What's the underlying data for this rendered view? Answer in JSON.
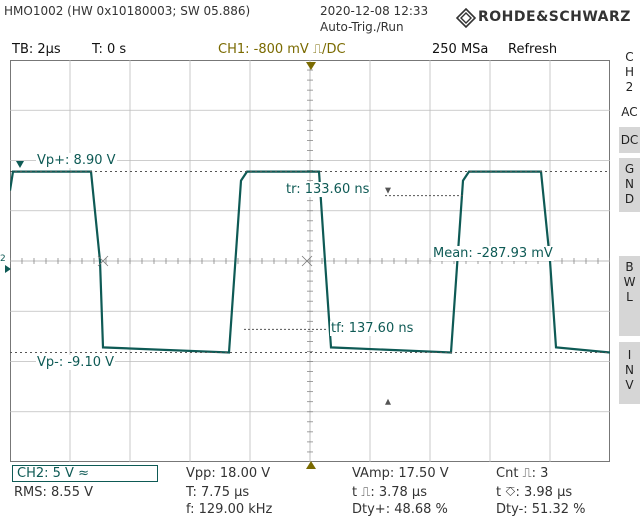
{
  "header": {
    "device": "HMO1002 (HW 0x10180003; SW 05.886)",
    "date": "2020-12-08 12:33",
    "trigger_mode": "Auto-Trig./Run",
    "brand": "ROHDE&SCHWARZ"
  },
  "status_bar": {
    "timebase": "TB: 2µs",
    "trigger_time": "T: 0 s",
    "ch1": "CH1: -800 mV ⎍/DC",
    "sample_rate": "250 MSa",
    "mode": "Refresh"
  },
  "side_panel": {
    "ch2_label": "C\nH\n2",
    "ac": "AC",
    "dc": "DC",
    "gnd": "G\nN\nD",
    "bwl": "B\nW\nL",
    "inv": "I\nN\nV"
  },
  "overlays": {
    "vp_plus": "Vp+: 8.90 V",
    "vp_minus": "Vp-: -9.10 V",
    "tr": "tr: 133.60 ns",
    "tf": "tf: 137.60 ns",
    "mean": "Mean: -287.93 mV",
    "ch_marker": "2"
  },
  "measurements": {
    "ch2": "CH2: 5 V ≈",
    "rms": "RMS: 8.55 V",
    "vpp": "Vpp: 18.00 V",
    "period": "T: 7.75 µs",
    "freq": "f: 129.00 kHz",
    "vamp": "VAmp: 17.50 V",
    "t_pos": "t ⎍: 3.78 µs",
    "dty_pos": "Dty+: 48.68 %",
    "cnt": "Cnt ⎍: 3",
    "t_neg": "t ⎏: 3.98 µs",
    "dty_neg": "Dty-: 51.32 %"
  },
  "colors": {
    "trace": "#0e5a55",
    "trigger_marker": "#7a6a00",
    "grid": "#bdbdbd",
    "side_active": "#d6d6d6"
  },
  "chart_data": {
    "type": "line",
    "xlabel": "",
    "ylabel": "",
    "x_unit": "µs",
    "y_unit": "V",
    "xlim": [
      -10,
      10
    ],
    "ylim": [
      -20,
      20
    ],
    "series": [
      {
        "name": "",
        "x": [
          -10.0,
          -9.9,
          -7.3,
          -7.0,
          -6.9,
          -2.7,
          -2.3,
          -2.1,
          0.3,
          0.5,
          0.7,
          4.7,
          5.1,
          5.3,
          7.7,
          8.0,
          8.2,
          10.0
        ],
        "y": [
          7.0,
          8.9,
          8.9,
          0.0,
          -8.6,
          -9.1,
          8.0,
          8.9,
          8.9,
          0.0,
          -8.6,
          -9.1,
          8.0,
          8.9,
          8.9,
          0.0,
          -8.6,
          -9.1
        ]
      }
    ]
  }
}
